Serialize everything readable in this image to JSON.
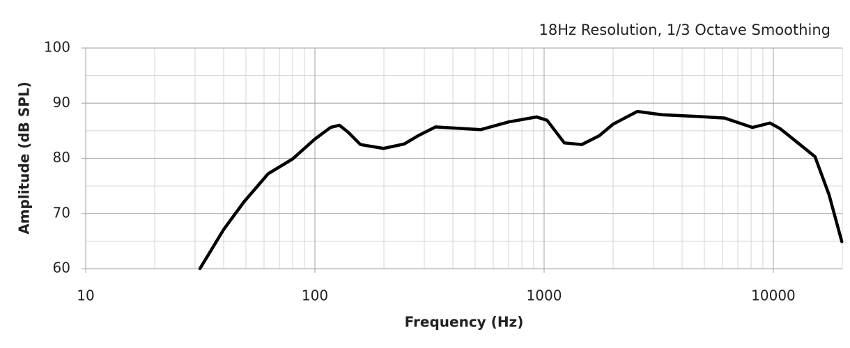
{
  "chart_data": {
    "type": "line",
    "subtitle": "18Hz Resolution, 1/3 Octave Smoothing",
    "x_label": "Frequency (Hz)",
    "y_label": "Amplitude (dB SPL)",
    "x": [
      31.5,
      40,
      49,
      62.5,
      80,
      100,
      117,
      128,
      140,
      158,
      199,
      245,
      282,
      336,
      400,
      528,
      700,
      927,
      1030,
      1225,
      1460,
      1740,
      2000,
      2550,
      3270,
      4630,
      6130,
      8110,
      9660,
      10700,
      12800,
      15200,
      17500,
      19900
    ],
    "values": [
      60,
      67.1,
      72.1,
      77.2,
      79.9,
      83.5,
      85.6,
      86,
      84.7,
      82.5,
      81.8,
      82.6,
      84.1,
      85.7,
      85.5,
      85.2,
      86.6,
      87.5,
      86.9,
      82.8,
      82.5,
      84.1,
      86.2,
      88.5,
      87.9,
      87.6,
      87.3,
      85.6,
      86.4,
      85.4,
      82.8,
      80.3,
      73.4,
      64.9
    ],
    "color": "#000000",
    "xscale": "log",
    "xlim": [
      10,
      20000
    ],
    "xticks": [
      10,
      100,
      1000,
      10000
    ],
    "x_minor_ticks": [
      20,
      30,
      40,
      50,
      60,
      70,
      80,
      90,
      200,
      300,
      400,
      500,
      600,
      700,
      800,
      900,
      2000,
      3000,
      4000,
      5000,
      6000,
      7000,
      8000,
      9000,
      20000
    ],
    "ylim": [
      60,
      100
    ],
    "yticks": [
      60,
      70,
      80,
      90,
      100
    ],
    "y_minor_ticks": [
      65,
      75,
      85,
      95
    ],
    "grid": true
  }
}
